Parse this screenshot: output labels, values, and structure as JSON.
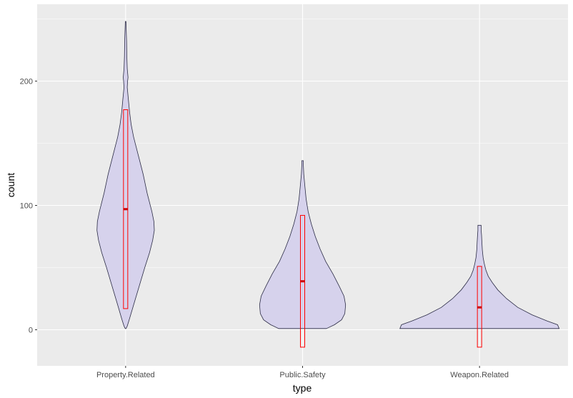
{
  "chart_data": {
    "type": "violin",
    "title": "",
    "xlabel": "type",
    "ylabel": "count",
    "categories": [
      "Property.Related",
      "Public.Safety",
      "Weapon.Related"
    ],
    "ylim": [
      -30,
      250
    ],
    "yticks": [
      0,
      100,
      200
    ],
    "grid": true,
    "legend": "none",
    "colors": {
      "panel": "#ebebeb",
      "grid": "#ffffff",
      "violin_fill": "#d6d2ec",
      "violin_stroke": "#2b2b45",
      "box_stroke": "#ff0000",
      "median": "#cc0000"
    },
    "series": [
      {
        "category": "Property.Related",
        "y_min": 1,
        "y_max": 248,
        "box": {
          "lower": 17,
          "upper": 177,
          "median": 97
        },
        "profile": [
          [
            1,
            0.005
          ],
          [
            3,
            0.02
          ],
          [
            8,
            0.045
          ],
          [
            20,
            0.1
          ],
          [
            35,
            0.17
          ],
          [
            50,
            0.24
          ],
          [
            62,
            0.3
          ],
          [
            72,
            0.34
          ],
          [
            80,
            0.36
          ],
          [
            87,
            0.355
          ],
          [
            95,
            0.33
          ],
          [
            110,
            0.27
          ],
          [
            125,
            0.22
          ],
          [
            140,
            0.16
          ],
          [
            155,
            0.1
          ],
          [
            165,
            0.07
          ],
          [
            175,
            0.05
          ],
          [
            185,
            0.035
          ],
          [
            195,
            0.02
          ],
          [
            200,
            0.025
          ],
          [
            203,
            0.03
          ],
          [
            210,
            0.02
          ],
          [
            220,
            0.015
          ],
          [
            232,
            0.012
          ],
          [
            240,
            0.008
          ],
          [
            248,
            0.004
          ]
        ]
      },
      {
        "category": "Public.Safety",
        "y_min": 1,
        "y_max": 136,
        "box": {
          "lower": -14,
          "upper": 92,
          "median": 39
        },
        "profile": [
          [
            1,
            0.3
          ],
          [
            4,
            0.4
          ],
          [
            8,
            0.49
          ],
          [
            13,
            0.53
          ],
          [
            20,
            0.54
          ],
          [
            27,
            0.52
          ],
          [
            35,
            0.46
          ],
          [
            45,
            0.38
          ],
          [
            55,
            0.29
          ],
          [
            65,
            0.22
          ],
          [
            75,
            0.16
          ],
          [
            85,
            0.11
          ],
          [
            95,
            0.07
          ],
          [
            105,
            0.045
          ],
          [
            115,
            0.03
          ],
          [
            125,
            0.015
          ],
          [
            132,
            0.01
          ],
          [
            136,
            0.01
          ]
        ]
      },
      {
        "category": "Weapon.Related",
        "y_min": 1,
        "y_max": 84,
        "box": {
          "lower": -14,
          "upper": 51,
          "median": 18
        },
        "profile": [
          [
            1,
            1.0
          ],
          [
            4,
            0.98
          ],
          [
            7,
            0.85
          ],
          [
            12,
            0.66
          ],
          [
            18,
            0.48
          ],
          [
            25,
            0.34
          ],
          [
            32,
            0.23
          ],
          [
            38,
            0.16
          ],
          [
            43,
            0.11
          ],
          [
            48,
            0.08
          ],
          [
            53,
            0.06
          ],
          [
            58,
            0.045
          ],
          [
            64,
            0.035
          ],
          [
            70,
            0.03
          ],
          [
            76,
            0.025
          ],
          [
            80,
            0.02
          ],
          [
            84,
            0.02
          ]
        ]
      }
    ]
  }
}
